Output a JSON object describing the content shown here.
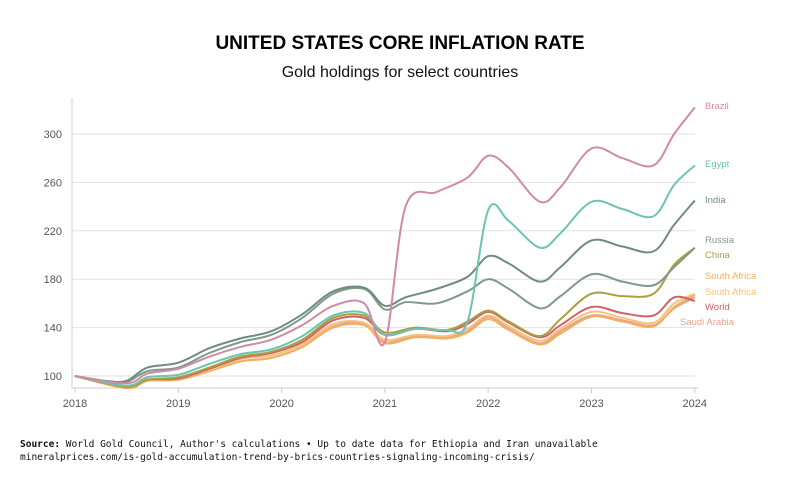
{
  "chart_data": {
    "type": "line",
    "title": "UNITED STATES CORE INFLATION RATE",
    "subtitle": "Gold holdings for select countries",
    "xlim": [
      2018,
      2024
    ],
    "ylim": [
      90,
      320
    ],
    "xticks": [
      2018,
      2019,
      2020,
      2021,
      2022,
      2023,
      2024
    ],
    "yticks": [
      100,
      140,
      180,
      220,
      260,
      300
    ],
    "grid": "horizontal",
    "legend": "direct labels at right end",
    "series": [
      {
        "name": "Brazil",
        "color": "#d08aa6",
        "points": [
          [
            2018,
            100
          ],
          [
            2018.5,
            94
          ],
          [
            2018.7,
            102
          ],
          [
            2019,
            106
          ],
          [
            2019.3,
            116
          ],
          [
            2019.6,
            124
          ],
          [
            2019.9,
            130
          ],
          [
            2020.2,
            142
          ],
          [
            2020.5,
            158
          ],
          [
            2020.8,
            160
          ],
          [
            2021,
            128
          ],
          [
            2021.2,
            240
          ],
          [
            2021.5,
            252
          ],
          [
            2021.8,
            264
          ],
          [
            2022,
            282
          ],
          [
            2022.2,
            272
          ],
          [
            2022.5,
            244
          ],
          [
            2022.7,
            256
          ],
          [
            2023,
            288
          ],
          [
            2023.3,
            280
          ],
          [
            2023.6,
            274
          ],
          [
            2023.8,
            300
          ],
          [
            2024,
            322
          ]
        ]
      },
      {
        "name": "Egypt",
        "color": "#6cc4b4",
        "points": [
          [
            2018,
            100
          ],
          [
            2018.5,
            92
          ],
          [
            2018.7,
            99
          ],
          [
            2019,
            101
          ],
          [
            2019.3,
            110
          ],
          [
            2019.6,
            118
          ],
          [
            2019.9,
            122
          ],
          [
            2020.2,
            133
          ],
          [
            2020.5,
            150
          ],
          [
            2020.8,
            152
          ],
          [
            2021,
            134
          ],
          [
            2021.3,
            139
          ],
          [
            2021.6,
            138
          ],
          [
            2021.8,
            145
          ],
          [
            2022,
            237
          ],
          [
            2022.2,
            228
          ],
          [
            2022.5,
            206
          ],
          [
            2022.7,
            218
          ],
          [
            2023,
            244
          ],
          [
            2023.3,
            238
          ],
          [
            2023.6,
            232
          ],
          [
            2023.8,
            258
          ],
          [
            2024,
            274
          ]
        ]
      },
      {
        "name": "India",
        "color": "#708c80",
        "points": [
          [
            2018,
            100
          ],
          [
            2018.3,
            96
          ],
          [
            2018.5,
            96
          ],
          [
            2018.7,
            107
          ],
          [
            2019,
            111
          ],
          [
            2019.3,
            123
          ],
          [
            2019.6,
            131
          ],
          [
            2019.9,
            137
          ],
          [
            2020.2,
            151
          ],
          [
            2020.5,
            170
          ],
          [
            2020.8,
            173
          ],
          [
            2021,
            158
          ],
          [
            2021.2,
            165
          ],
          [
            2021.5,
            172
          ],
          [
            2021.8,
            182
          ],
          [
            2022,
            199
          ],
          [
            2022.2,
            193
          ],
          [
            2022.5,
            178
          ],
          [
            2022.7,
            190
          ],
          [
            2023,
            212
          ],
          [
            2023.3,
            207
          ],
          [
            2023.6,
            203
          ],
          [
            2023.8,
            225
          ],
          [
            2024,
            245
          ]
        ]
      },
      {
        "name": "Russia",
        "color": "#7f9a86",
        "points": [
          [
            2018,
            100
          ],
          [
            2018.3,
            95
          ],
          [
            2018.5,
            95
          ],
          [
            2018.7,
            104
          ],
          [
            2019,
            107
          ],
          [
            2019.3,
            119
          ],
          [
            2019.6,
            128
          ],
          [
            2019.9,
            134
          ],
          [
            2020.2,
            148
          ],
          [
            2020.5,
            168
          ],
          [
            2020.8,
            172
          ],
          [
            2021,
            155
          ],
          [
            2021.2,
            161
          ],
          [
            2021.5,
            160
          ],
          [
            2021.8,
            170
          ],
          [
            2022,
            180
          ],
          [
            2022.2,
            172
          ],
          [
            2022.5,
            156
          ],
          [
            2022.7,
            166
          ],
          [
            2023,
            184
          ],
          [
            2023.3,
            178
          ],
          [
            2023.6,
            175
          ],
          [
            2023.8,
            190
          ],
          [
            2024,
            206
          ]
        ]
      },
      {
        "name": "China",
        "color": "#a9a040",
        "points": [
          [
            2018,
            100
          ],
          [
            2018.5,
            91
          ],
          [
            2018.7,
            97
          ],
          [
            2019,
            99
          ],
          [
            2019.3,
            107
          ],
          [
            2019.6,
            116
          ],
          [
            2019.9,
            120
          ],
          [
            2020.2,
            130
          ],
          [
            2020.5,
            148
          ],
          [
            2020.8,
            150
          ],
          [
            2021,
            136
          ],
          [
            2021.3,
            140
          ],
          [
            2021.6,
            138
          ],
          [
            2021.8,
            145
          ],
          [
            2022,
            154
          ],
          [
            2022.2,
            145
          ],
          [
            2022.5,
            133
          ],
          [
            2022.7,
            147
          ],
          [
            2023,
            168
          ],
          [
            2023.3,
            166
          ],
          [
            2023.6,
            168
          ],
          [
            2023.8,
            192
          ],
          [
            2024,
            206
          ]
        ]
      },
      {
        "name": "South Africa",
        "color": "#f0b060",
        "points": [
          [
            2018,
            100
          ],
          [
            2018.5,
            90
          ],
          [
            2018.7,
            96
          ],
          [
            2019,
            97
          ],
          [
            2019.3,
            104
          ],
          [
            2019.6,
            112
          ],
          [
            2019.9,
            115
          ],
          [
            2020.2,
            124
          ],
          [
            2020.5,
            140
          ],
          [
            2020.8,
            142
          ],
          [
            2021,
            127
          ],
          [
            2021.3,
            132
          ],
          [
            2021.6,
            131
          ],
          [
            2021.8,
            136
          ],
          [
            2022,
            147
          ],
          [
            2022.2,
            138
          ],
          [
            2022.5,
            126
          ],
          [
            2022.7,
            135
          ],
          [
            2023,
            149
          ],
          [
            2023.3,
            145
          ],
          [
            2023.6,
            141
          ],
          [
            2023.8,
            157
          ],
          [
            2024,
            167
          ]
        ]
      },
      {
        "name": "South Africa",
        "color": "#f3c27e",
        "points": [
          [
            2018,
            100
          ],
          [
            2018.5,
            91
          ],
          [
            2018.7,
            97
          ],
          [
            2019,
            98
          ],
          [
            2019.3,
            105
          ],
          [
            2019.6,
            114
          ],
          [
            2019.9,
            117
          ],
          [
            2020.2,
            126
          ],
          [
            2020.5,
            143
          ],
          [
            2020.8,
            144
          ],
          [
            2021,
            130
          ],
          [
            2021.3,
            134
          ],
          [
            2021.6,
            133
          ],
          [
            2021.8,
            139
          ],
          [
            2022,
            150
          ],
          [
            2022.2,
            141
          ],
          [
            2022.5,
            129
          ],
          [
            2022.7,
            139
          ],
          [
            2023,
            153
          ],
          [
            2023.3,
            148
          ],
          [
            2023.6,
            144
          ],
          [
            2023.8,
            160
          ],
          [
            2024,
            168
          ]
        ]
      },
      {
        "name": "World",
        "color": "#d4606a",
        "points": [
          [
            2018,
            100
          ],
          [
            2018.5,
            91
          ],
          [
            2018.7,
            97
          ],
          [
            2019,
            98
          ],
          [
            2019.3,
            106
          ],
          [
            2019.6,
            115
          ],
          [
            2019.9,
            119
          ],
          [
            2020.2,
            128
          ],
          [
            2020.5,
            146
          ],
          [
            2020.8,
            148
          ],
          [
            2021,
            134
          ],
          [
            2021.3,
            139
          ],
          [
            2021.6,
            137
          ],
          [
            2021.8,
            143
          ],
          [
            2022,
            153
          ],
          [
            2022.2,
            144
          ],
          [
            2022.5,
            132
          ],
          [
            2022.7,
            142
          ],
          [
            2023,
            157
          ],
          [
            2023.3,
            152
          ],
          [
            2023.6,
            150
          ],
          [
            2023.8,
            165
          ],
          [
            2024,
            162
          ]
        ]
      },
      {
        "name": "Saudi Arabia",
        "color": "#e8a08c",
        "points": [
          [
            2018,
            100
          ],
          [
            2018.5,
            90
          ],
          [
            2018.7,
            96
          ],
          [
            2019,
            97
          ],
          [
            2019.3,
            104
          ],
          [
            2019.6,
            112
          ],
          [
            2019.9,
            115
          ],
          [
            2020.2,
            124
          ],
          [
            2020.5,
            141
          ],
          [
            2020.8,
            143
          ],
          [
            2021,
            128
          ],
          [
            2021.3,
            133
          ],
          [
            2021.6,
            132
          ],
          [
            2021.8,
            137
          ],
          [
            2022,
            149
          ],
          [
            2022.2,
            139
          ],
          [
            2022.5,
            127
          ],
          [
            2022.7,
            137
          ],
          [
            2023,
            150
          ],
          [
            2023.3,
            146
          ],
          [
            2023.6,
            142
          ],
          [
            2023.8,
            156
          ],
          [
            2024,
            165
          ]
        ]
      }
    ]
  },
  "footer": {
    "source_label": "Source:",
    "source_text": " World Gold Council, Author's calculations • Up to date data for Ethiopia and Iran unavailable",
    "url": "mineralprices.com/is-gold-accumulation-trend-by-brics-countries-signaling-incoming-crisis/"
  }
}
